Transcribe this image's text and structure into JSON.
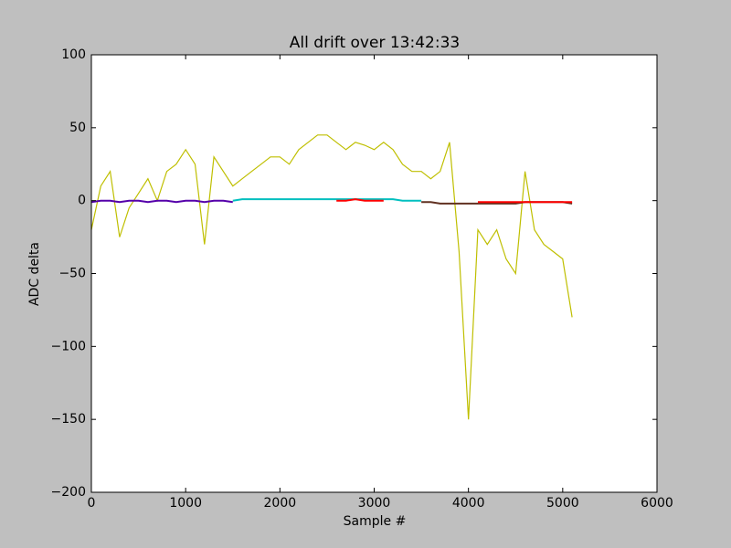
{
  "chart_data": {
    "type": "line",
    "title": "All drift over 13:42:33",
    "xlabel": "Sample #",
    "ylabel": "ADC delta",
    "xlim": [
      0,
      6000
    ],
    "ylim": [
      -200,
      100
    ],
    "xticks": [
      0,
      1000,
      2000,
      3000,
      4000,
      5000,
      6000
    ],
    "yticks": [
      {
        "value": -200,
        "label": "−200"
      },
      {
        "value": -150,
        "label": "−150"
      },
      {
        "value": -100,
        "label": "−100"
      },
      {
        "value": -50,
        "label": "−50"
      },
      0,
      50,
      100
    ],
    "x": [
      0,
      100,
      200,
      300,
      400,
      500,
      600,
      700,
      800,
      900,
      1000,
      1100,
      1200,
      1300,
      1400,
      1500,
      1600,
      1700,
      1800,
      1900,
      2000,
      2100,
      2200,
      2300,
      2400,
      2500,
      2600,
      2700,
      2800,
      2900,
      3000,
      3100,
      3200,
      3300,
      3400,
      3500,
      3600,
      3700,
      3800,
      3900,
      4000,
      4100,
      4200,
      4300,
      4400,
      4500,
      4600,
      4700,
      4800,
      4900,
      5000,
      5100
    ],
    "series": [
      {
        "color": "#bfbf00",
        "values": [
          -20,
          10,
          20,
          -25,
          -5,
          5,
          15,
          0,
          20,
          25,
          35,
          25,
          -30,
          30,
          20,
          10,
          15,
          20,
          25,
          30,
          30,
          25,
          35,
          40,
          45,
          45,
          40,
          35,
          40,
          38,
          35,
          40,
          35,
          25,
          20,
          20,
          15,
          20,
          40,
          -35,
          -150,
          -20,
          -30,
          -20,
          -40,
          -50,
          20,
          -20,
          -30,
          -35,
          -40,
          -80
        ]
      },
      {
        "color": "#00bfbf",
        "values": [
          null,
          null,
          null,
          null,
          null,
          null,
          null,
          null,
          null,
          null,
          null,
          null,
          null,
          null,
          null,
          0,
          1,
          1,
          1,
          1,
          1,
          1,
          1,
          1,
          1,
          1,
          1,
          1,
          1,
          1,
          1,
          1,
          1,
          0,
          0,
          0,
          null,
          null,
          null,
          null,
          null,
          null,
          null,
          null,
          null,
          null,
          null,
          null,
          null,
          null,
          null,
          null
        ]
      },
      {
        "color": "#5500aa",
        "values": [
          -1,
          0,
          0,
          -1,
          0,
          0,
          -1,
          0,
          0,
          -1,
          0,
          0,
          -1,
          0,
          0,
          -1,
          null,
          null,
          null,
          null,
          null,
          null,
          null,
          null,
          null,
          null,
          null,
          null,
          null,
          null,
          null,
          null,
          null,
          null,
          null,
          null,
          null,
          null,
          null,
          null,
          null,
          null,
          null,
          null,
          null,
          null,
          null,
          null,
          null,
          null,
          null,
          null
        ]
      },
      {
        "color": "#603020",
        "values": [
          null,
          null,
          null,
          null,
          null,
          null,
          null,
          null,
          null,
          null,
          null,
          null,
          null,
          null,
          null,
          null,
          null,
          null,
          null,
          null,
          null,
          null,
          null,
          null,
          null,
          null,
          null,
          null,
          null,
          null,
          null,
          null,
          null,
          null,
          null,
          -1,
          -1,
          -2,
          -2,
          -2,
          -2,
          -2,
          -2,
          -2,
          -2,
          -2,
          -1,
          -1,
          -1,
          -1,
          -1,
          -2
        ]
      },
      {
        "color": "#ff0000",
        "values": [
          null,
          null,
          null,
          null,
          null,
          null,
          null,
          null,
          null,
          null,
          null,
          null,
          null,
          null,
          null,
          null,
          null,
          null,
          null,
          null,
          null,
          null,
          null,
          null,
          null,
          null,
          0,
          0,
          1,
          0,
          0,
          0,
          null,
          null,
          null,
          null,
          null,
          null,
          null,
          null,
          null,
          -1,
          -1,
          -1,
          -1,
          -1,
          -1,
          -1,
          -1,
          -1,
          -1,
          -1
        ]
      }
    ]
  }
}
